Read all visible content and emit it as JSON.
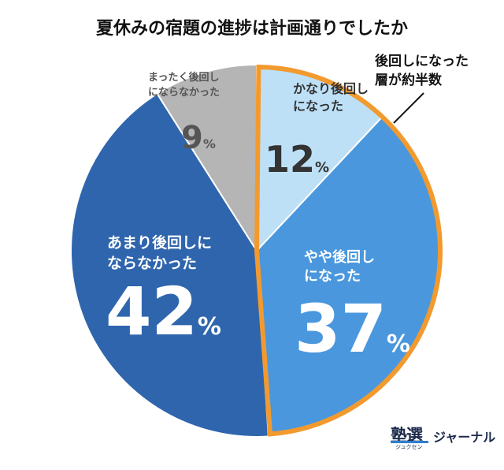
{
  "chart_data": {
    "type": "pie",
    "title": "夏休みの宿題の進捗は計画通りでしたか",
    "categories": [
      "かなり後回しになった",
      "やや後回しになった",
      "あまり後回しにならなかった",
      "まったく後回しにならなかった"
    ],
    "values": [
      12,
      37,
      42,
      9
    ],
    "unit": "%",
    "start_angle_deg": 0,
    "direction": "clockwise",
    "highlight": {
      "slices": [
        "かなり後回しになった",
        "やや後回しになった"
      ],
      "color": "#f39a2e",
      "label_lines": [
        "後回しになった",
        "層が約半数"
      ]
    },
    "slice_colors": [
      "#bde0f7",
      "#4a97dd",
      "#2f65ad",
      "#b5b5b5"
    ],
    "label_colors": [
      "#333333",
      "#ffffff",
      "#ffffff",
      "#555555"
    ],
    "label_lines": [
      [
        "かなり後回し",
        "になった"
      ],
      [
        "やや後回し",
        "になった"
      ],
      [
        "あまり後回しに",
        "ならなかった"
      ],
      [
        "まったく後回し",
        "にならなかった"
      ]
    ]
  },
  "brand": {
    "logo_kanji": "塾選",
    "logo_kana": "ジャーナル",
    "logo_sub": "ジュクセン"
  }
}
